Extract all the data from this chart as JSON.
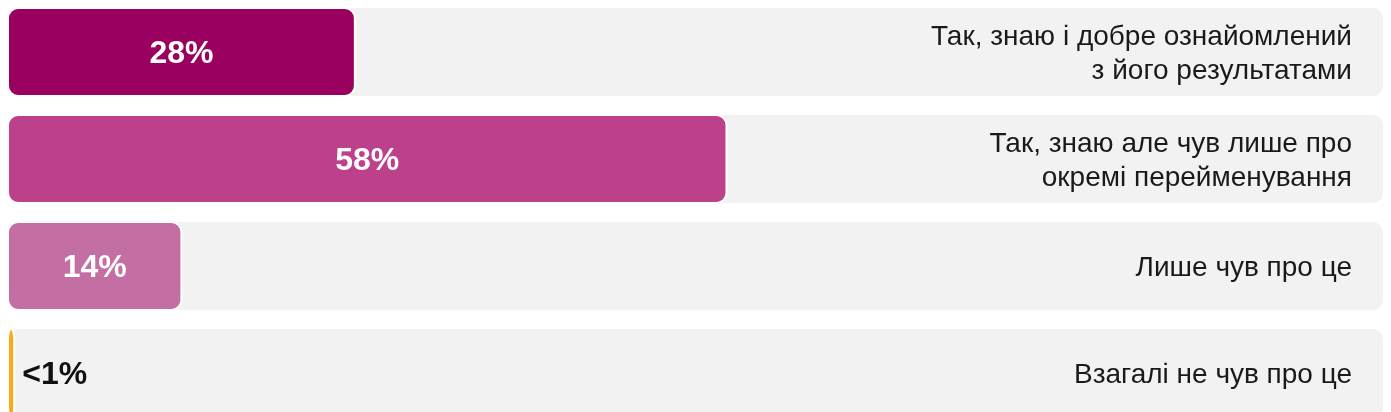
{
  "chart_data": {
    "type": "bar",
    "orientation": "horizontal",
    "categories": [
      "Так, знаю і добре ознайомлений з його результатами",
      "Так, знаю але чув лише про окремі перейменування",
      "Лише чув про це",
      "Взагалі не чув про це"
    ],
    "values": [
      28,
      58,
      14,
      0.5
    ],
    "value_labels": [
      "28%",
      "58%",
      "14%",
      "<1%"
    ],
    "colors": [
      "#99005f",
      "#bd408b",
      "#c46fa3",
      "#fbaa19"
    ],
    "xlim": [
      0,
      111
    ],
    "tick_labels": false
  }
}
